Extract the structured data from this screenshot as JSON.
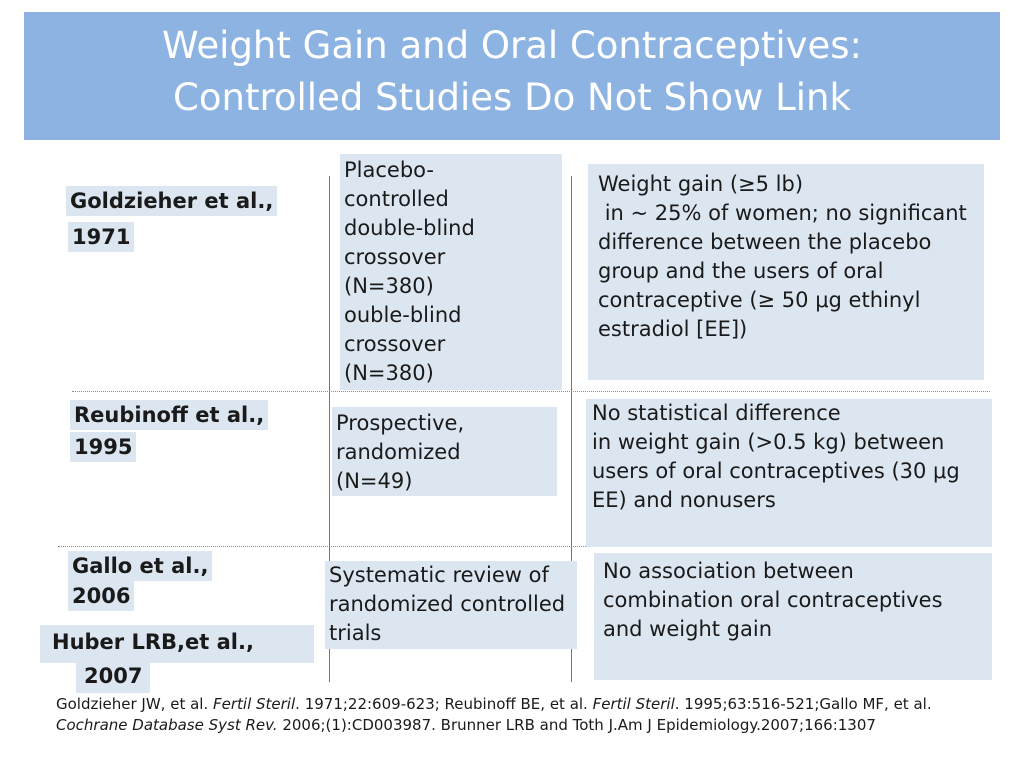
{
  "title": {
    "line1": "Weight Gain and Oral Contraceptives:",
    "line2": "Controlled Studies Do Not Show Link"
  },
  "studies": [
    {
      "author": "Goldzieher et al.,",
      "year": "1971",
      "design": "Placebo-\ncontrolled\ndouble-blind\ncrossover\n(N=380)\nouble-blind\ncrossover\n(N=380)",
      "result": "Weight gain (≥5 lb)\n in ~ 25% of women; no significant difference between the placebo group and the users of oral contraceptive (≥ 50 μg ethinyl estradiol [EE])"
    },
    {
      "author": "Reubinoff et al.,",
      "year": "1995",
      "design": "Prospective,\nrandomized\n(N=49)",
      "result": "No statistical difference\nin weight gain (>0.5 kg) between users of oral contraceptives (30 μg EE) and nonusers"
    },
    {
      "author": "Gallo et al.,",
      "year": "2006",
      "design": "Systematic review of randomized controlled trials",
      "result": "No association between combination oral contraceptives and weight gain"
    },
    {
      "author": "Huber LRB,et al.,",
      "year": "2007"
    }
  ],
  "references": {
    "r1_pre": "Goldzieher JW, et al. ",
    "r1_journal": "Fertil Steril",
    "r1_post": ". 1971;22:609-623; Reubinoff BE, et al. ",
    "r2_journal": "Fertil Steril",
    "r2_post": ". 1995;63:516-521;Gallo MF, et al. ",
    "r3_journal": "Cochrane Database Syst Rev.",
    "r3_post": " 2006;(1):CD003987. Brunner LRB and Toth J.Am J Epidemiology.2007;166:1307"
  },
  "colors": {
    "banner": "#8db3e2",
    "cell_fill": "#dce6f1",
    "title_text": "#ffffff"
  }
}
